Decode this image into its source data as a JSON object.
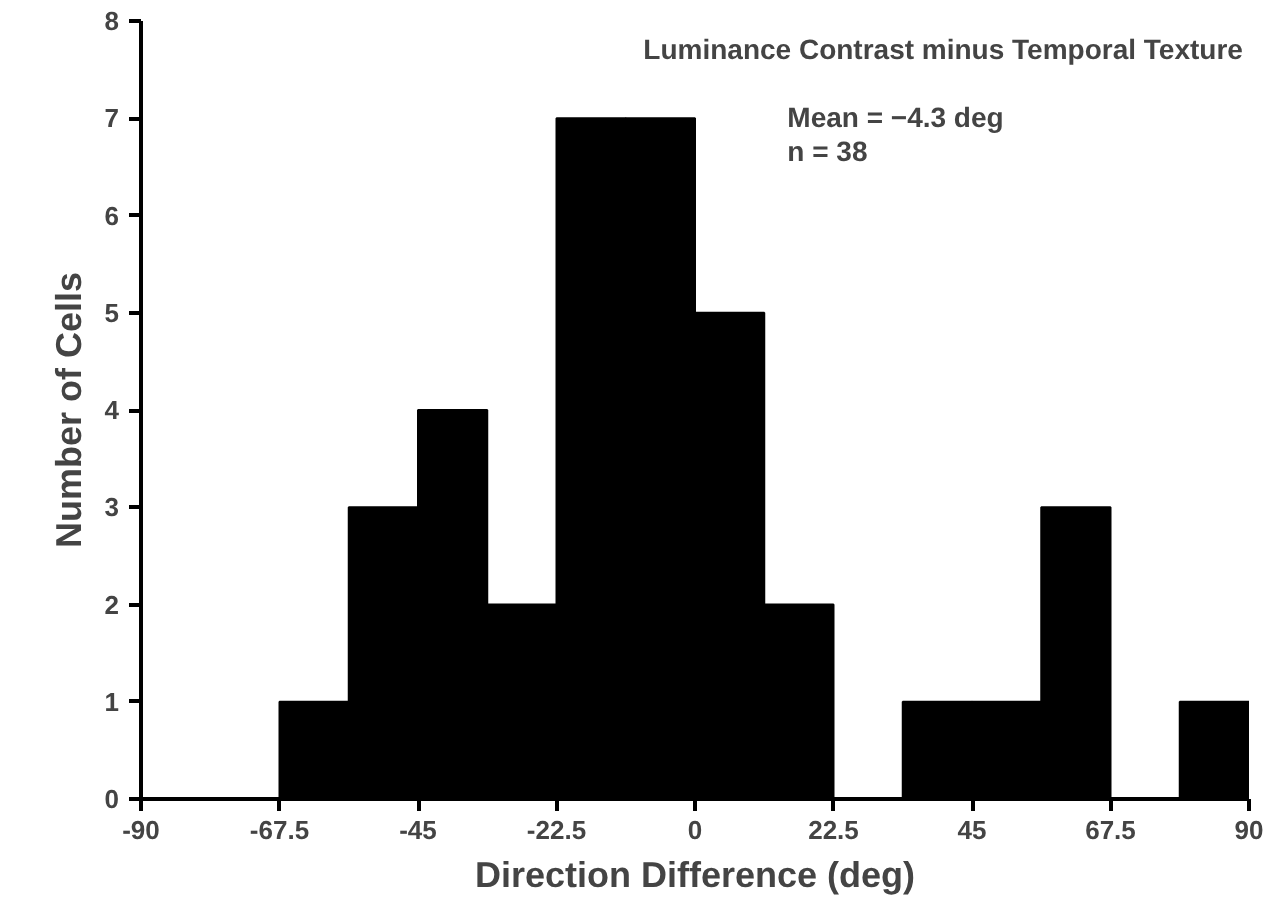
{
  "chart_data": {
    "type": "histogram",
    "xlabel": "Direction Difference (deg)",
    "ylabel": "Number of Cells",
    "bins": [
      -90,
      -78.75,
      -67.5,
      -56.25,
      -45,
      -33.75,
      -22.5,
      -11.25,
      0,
      11.25,
      22.5,
      33.75,
      45,
      56.25,
      67.5,
      78.75,
      90
    ],
    "values": [
      0,
      0,
      1,
      3,
      4,
      2,
      7,
      7,
      5,
      2,
      0,
      1,
      1,
      3,
      0,
      1
    ],
    "color": "#000000",
    "xlim": [
      -90,
      90
    ],
    "xticks": [
      -90,
      -67.5,
      -45,
      -22.5,
      0,
      22.5,
      45,
      67.5,
      90
    ],
    "ylim": [
      0,
      8
    ],
    "yticks": [
      0,
      1,
      2,
      3,
      4,
      5,
      6,
      7,
      8
    ],
    "grid": false,
    "annotations": [
      "Luminance Contrast minus Temporal Texture",
      "Mean = −4.3 deg",
      "n = 38"
    ]
  }
}
